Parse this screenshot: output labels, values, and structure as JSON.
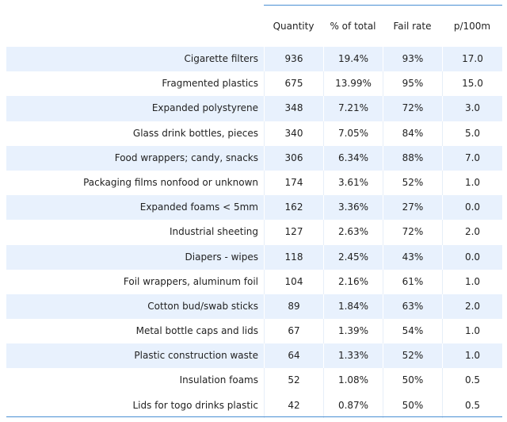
{
  "table": {
    "columns": [
      "Quantity",
      "% of total",
      "Fail rate",
      "p/100m"
    ],
    "rows": [
      {
        "name": "Cigarette filters",
        "quantity": "936",
        "pct": "19.4%",
        "fail": "93%",
        "p100": "17.0"
      },
      {
        "name": "Fragmented plastics",
        "quantity": "675",
        "pct": "13.99%",
        "fail": "95%",
        "p100": "15.0"
      },
      {
        "name": "Expanded polystyrene",
        "quantity": "348",
        "pct": "7.21%",
        "fail": "72%",
        "p100": "3.0"
      },
      {
        "name": "Glass drink bottles, pieces",
        "quantity": "340",
        "pct": "7.05%",
        "fail": "84%",
        "p100": "5.0"
      },
      {
        "name": "Food wrappers; candy, snacks",
        "quantity": "306",
        "pct": "6.34%",
        "fail": "88%",
        "p100": "7.0"
      },
      {
        "name": "Packaging films nonfood or unknown",
        "quantity": "174",
        "pct": "3.61%",
        "fail": "52%",
        "p100": "1.0"
      },
      {
        "name": "Expanded foams < 5mm",
        "quantity": "162",
        "pct": "3.36%",
        "fail": "27%",
        "p100": "0.0"
      },
      {
        "name": "Industrial sheeting",
        "quantity": "127",
        "pct": "2.63%",
        "fail": "72%",
        "p100": "2.0"
      },
      {
        "name": "Diapers - wipes",
        "quantity": "118",
        "pct": "2.45%",
        "fail": "43%",
        "p100": "0.0"
      },
      {
        "name": "Foil wrappers, aluminum foil",
        "quantity": "104",
        "pct": "2.16%",
        "fail": "61%",
        "p100": "1.0"
      },
      {
        "name": "Cotton bud/swab sticks",
        "quantity": "89",
        "pct": "1.84%",
        "fail": "63%",
        "p100": "2.0"
      },
      {
        "name": "Metal bottle caps and lids",
        "quantity": "67",
        "pct": "1.39%",
        "fail": "54%",
        "p100": "1.0"
      },
      {
        "name": "Plastic construction waste",
        "quantity": "64",
        "pct": "1.33%",
        "fail": "52%",
        "p100": "1.0"
      },
      {
        "name": "Insulation foams",
        "quantity": "52",
        "pct": "1.08%",
        "fail": "50%",
        "p100": "0.5"
      },
      {
        "name": "Lids for togo drinks plastic",
        "quantity": "42",
        "pct": "0.87%",
        "fail": "50%",
        "p100": "0.5"
      }
    ]
  },
  "colors": {
    "rule": "#4a8fd4",
    "shaded_row": "#e8f1fd",
    "text": "#222222"
  }
}
